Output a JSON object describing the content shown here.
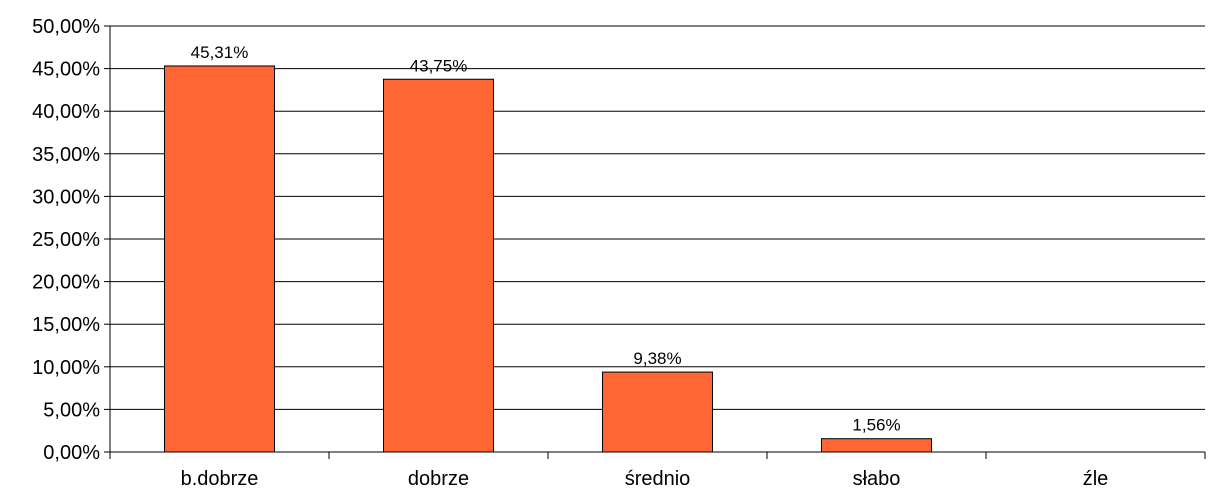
{
  "chart_data": {
    "type": "bar",
    "categories": [
      "b.dobrze",
      "dobrze",
      "średnio",
      "słabo",
      "źle"
    ],
    "values": [
      45.31,
      43.75,
      9.38,
      1.56,
      0
    ],
    "data_labels": [
      "45,31%",
      "43,75%",
      "9,38%",
      "1,56%",
      ""
    ],
    "ylim": [
      0,
      50
    ],
    "y_ticks": [
      0,
      5,
      10,
      15,
      20,
      25,
      30,
      35,
      40,
      45,
      50
    ],
    "y_tick_labels": [
      "0,00%",
      "5,00%",
      "10,00%",
      "15,00%",
      "20,00%",
      "25,00%",
      "30,00%",
      "35,00%",
      "40,00%",
      "45,00%",
      "50,00%"
    ],
    "grid": true,
    "legend": "none",
    "title": "",
    "xlabel": "",
    "ylabel": "",
    "colors": {
      "bar": "#FF6633",
      "bar_outline": "#000000",
      "grid": "#000000"
    }
  }
}
